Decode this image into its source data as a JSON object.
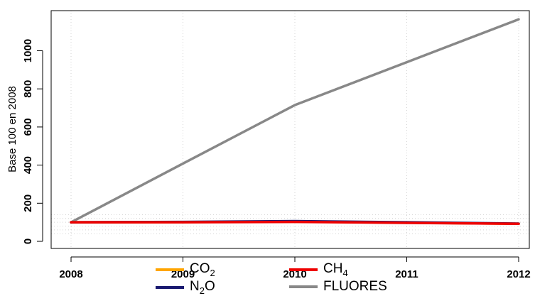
{
  "chart_data": {
    "type": "line",
    "title": "",
    "xlabel": "",
    "ylabel": "Base 100 en 2008",
    "x": [
      2008,
      2009,
      2010,
      2011,
      2012
    ],
    "x_ticks": [
      "2008",
      "2009",
      "2010",
      "2011",
      "2012"
    ],
    "y_ticks": [
      "0",
      "200",
      "400",
      "600",
      "800",
      "1000"
    ],
    "xlim": [
      2008,
      2012
    ],
    "ylim": [
      0,
      1100
    ],
    "grid": true,
    "legend_position": "bottom",
    "series": [
      {
        "name": "CO₂",
        "label_main": "CO",
        "label_sub": "2",
        "color": "#FFA500",
        "values": [
          100,
          101,
          103,
          98,
          92
        ]
      },
      {
        "name": "N₂O",
        "label_main": "N",
        "label_sub": "2",
        "label_tail": "O",
        "color": "#191970",
        "values": [
          100,
          102,
          106,
          100,
          93
        ]
      },
      {
        "name": "CH₄",
        "label_main": "CH",
        "label_sub": "4",
        "color": "#EE0000",
        "values": [
          100,
          100,
          102,
          97,
          92
        ]
      },
      {
        "name": "FLUORES",
        "label_main": "FLUORES",
        "label_sub": "",
        "color": "#888888",
        "values": [
          100,
          408,
          715,
          940,
          1165
        ]
      }
    ]
  }
}
